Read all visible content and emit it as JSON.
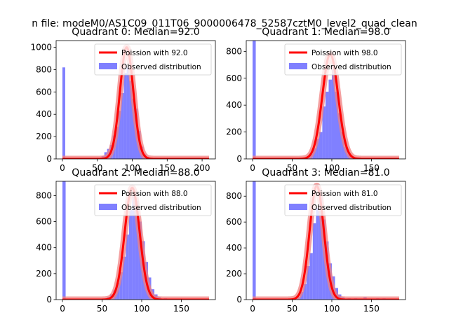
{
  "figure_title": "n file: modeM0/AS1C09_011T06_9000006478_52587cztM0_level2_quad_clean",
  "colors": {
    "fit_line": "#ff0000",
    "fit_band": "#f08080",
    "hist_bar": "#8080ff",
    "axis": "#000000"
  },
  "chart_data": [
    {
      "type": "bar",
      "title": "Quadrant 0: Median=92.0",
      "median": 92.0,
      "xlim": [
        -9,
        219
      ],
      "ylim": [
        0,
        1060
      ],
      "xticks": [
        0,
        50,
        100,
        150,
        200
      ],
      "yticks": [
        0,
        200,
        400,
        600,
        800,
        1000
      ],
      "legend": {
        "line_label": "Poission with 92.0",
        "bar_label": "Observed distribution",
        "placement": "top-right"
      },
      "histogram": {
        "bin_width": 4,
        "bins": [
          [
            0,
            820
          ],
          [
            52,
            5
          ],
          [
            56,
            25
          ],
          [
            60,
            60
          ],
          [
            64,
            90
          ],
          [
            68,
            125
          ],
          [
            72,
            210
          ],
          [
            76,
            290
          ],
          [
            80,
            430
          ],
          [
            84,
            590
          ],
          [
            88,
            770
          ],
          [
            92,
            820
          ],
          [
            96,
            700
          ],
          [
            100,
            540
          ],
          [
            104,
            450
          ],
          [
            108,
            250
          ],
          [
            112,
            110
          ],
          [
            116,
            40
          ],
          [
            120,
            20
          ],
          [
            124,
            10
          ],
          [
            132,
            10
          ],
          [
            140,
            5
          ],
          [
            148,
            5
          ],
          [
            156,
            5
          ]
        ]
      },
      "poisson": {
        "mean": 92.0,
        "peak": 1000,
        "sigma": 9.6,
        "xmin": 0,
        "xmax": 210
      }
    },
    {
      "type": "bar",
      "title": "Quadrant 1: Median=98.0",
      "median": 98.0,
      "xlim": [
        -8,
        193
      ],
      "ylim": [
        0,
        880
      ],
      "xticks": [
        0,
        50,
        100,
        150
      ],
      "yticks": [
        0,
        200,
        400,
        600,
        800
      ],
      "legend": {
        "line_label": "Poission with 98.0",
        "bar_label": "Observed distribution",
        "placement": "top-right"
      },
      "histogram": {
        "bin_width": 4,
        "bins": [
          [
            0,
            880
          ],
          [
            56,
            5
          ],
          [
            64,
            10
          ],
          [
            68,
            20
          ],
          [
            72,
            40
          ],
          [
            76,
            80
          ],
          [
            80,
            150
          ],
          [
            84,
            200
          ],
          [
            88,
            390
          ],
          [
            92,
            500
          ],
          [
            96,
            590
          ],
          [
            100,
            700
          ],
          [
            104,
            500
          ],
          [
            108,
            340
          ],
          [
            112,
            200
          ],
          [
            116,
            90
          ],
          [
            120,
            40
          ],
          [
            124,
            20
          ],
          [
            132,
            10
          ],
          [
            144,
            5
          ],
          [
            156,
            5
          ]
        ]
      },
      "poisson": {
        "mean": 98.0,
        "peak": 780,
        "sigma": 9.9,
        "xmin": 0,
        "xmax": 185
      }
    },
    {
      "type": "bar",
      "title": "Quadrant 2: Median=88.0",
      "median": 88.0,
      "xlim": [
        -8,
        193
      ],
      "ylim": [
        0,
        910
      ],
      "xticks": [
        0,
        50,
        100,
        150
      ],
      "yticks": [
        0,
        200,
        400,
        600,
        800
      ],
      "legend": {
        "line_label": "Poission with 88.0",
        "bar_label": "Observed distribution",
        "placement": "top-right"
      },
      "histogram": {
        "bin_width": 4,
        "bins": [
          [
            0,
            910
          ],
          [
            48,
            5
          ],
          [
            56,
            20
          ],
          [
            60,
            40
          ],
          [
            64,
            70
          ],
          [
            68,
            130
          ],
          [
            72,
            210
          ],
          [
            76,
            330
          ],
          [
            80,
            500
          ],
          [
            84,
            690
          ],
          [
            88,
            800
          ],
          [
            92,
            760
          ],
          [
            96,
            600
          ],
          [
            100,
            450
          ],
          [
            104,
            290
          ],
          [
            108,
            170
          ],
          [
            112,
            80
          ],
          [
            116,
            40
          ],
          [
            120,
            20
          ],
          [
            128,
            10
          ],
          [
            140,
            5
          ],
          [
            152,
            5
          ]
        ]
      },
      "poisson": {
        "mean": 88.0,
        "peak": 860,
        "sigma": 9.4,
        "xmin": 0,
        "xmax": 185
      }
    },
    {
      "type": "bar",
      "title": "Quadrant 3: Median=81.0",
      "median": 81.0,
      "xlim": [
        -8,
        193
      ],
      "ylim": [
        0,
        915
      ],
      "xticks": [
        0,
        50,
        100,
        150
      ],
      "yticks": [
        0,
        200,
        400,
        600,
        800
      ],
      "legend": {
        "line_label": "Poission with 81.0",
        "bar_label": "Observed distribution",
        "placement": "top-right"
      },
      "histogram": {
        "bin_width": 4,
        "bins": [
          [
            0,
            915
          ],
          [
            52,
            5
          ],
          [
            56,
            20
          ],
          [
            60,
            60
          ],
          [
            64,
            120
          ],
          [
            68,
            260
          ],
          [
            72,
            360
          ],
          [
            76,
            590
          ],
          [
            80,
            710
          ],
          [
            84,
            800
          ],
          [
            88,
            620
          ],
          [
            92,
            450
          ],
          [
            96,
            280
          ],
          [
            100,
            180
          ],
          [
            104,
            90
          ],
          [
            108,
            40
          ],
          [
            112,
            20
          ],
          [
            120,
            10
          ],
          [
            128,
            10
          ],
          [
            140,
            20
          ],
          [
            156,
            10
          ],
          [
            164,
            10
          ]
        ]
      },
      "poisson": {
        "mean": 81.0,
        "peak": 880,
        "sigma": 9.0,
        "xmin": 0,
        "xmax": 185
      }
    }
  ]
}
